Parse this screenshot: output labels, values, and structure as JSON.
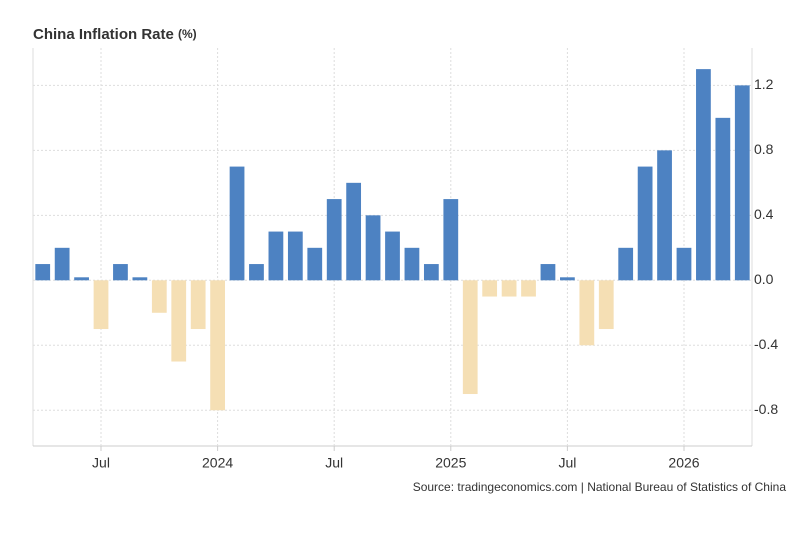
{
  "chart_data": {
    "type": "bar",
    "title": "China Inflation Rate",
    "unit": "(%)",
    "source": "Source: tradingeconomics.com | National Bureau of Statistics of China",
    "categories": [
      null,
      null,
      null,
      "Jul",
      null,
      null,
      null,
      null,
      null,
      "2024",
      null,
      null,
      null,
      null,
      null,
      "Jul",
      null,
      null,
      null,
      null,
      null,
      "2025",
      null,
      null,
      null,
      null,
      null,
      "Jul",
      null,
      null,
      null,
      null,
      null,
      "2026",
      null,
      null,
      null
    ],
    "values": [
      0.1,
      0.2,
      0.0,
      -0.3,
      0.1,
      0.0,
      -0.2,
      -0.5,
      -0.3,
      -0.8,
      0.7,
      0.1,
      0.3,
      0.3,
      0.2,
      0.5,
      0.6,
      0.4,
      0.3,
      0.2,
      0.1,
      0.5,
      -0.7,
      -0.1,
      -0.1,
      -0.1,
      0.1,
      0.0,
      -0.4,
      -0.3,
      0.2,
      0.7,
      0.8,
      0.2,
      1.3,
      1.0,
      1.2
    ],
    "color": "#4d82c2",
    "negative_color": "#f5dfb4",
    "ylim": [
      -1.02,
      1.43
    ],
    "yticks": [
      -0.8,
      -0.4,
      {
        "value": 0,
        "label": "0.0"
      },
      0.4,
      0.8,
      1.2
    ],
    "grid": true
  }
}
